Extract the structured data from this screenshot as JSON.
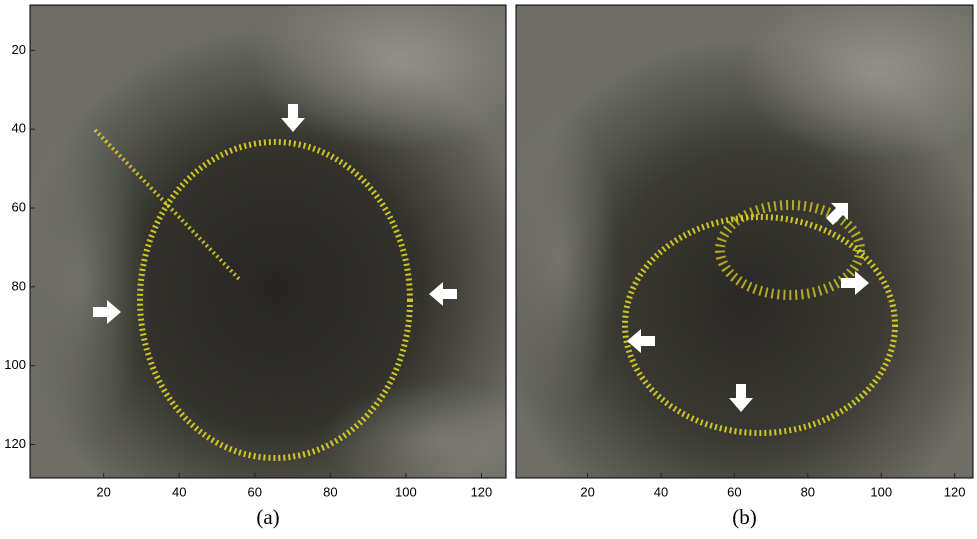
{
  "chart_data": [
    {
      "type": "image",
      "caption": "(a)",
      "xlim": [
        0.5,
        126.5
      ],
      "xticks": [
        20,
        40,
        60,
        80,
        100,
        120
      ],
      "ylim": [
        8.5,
        128.5
      ],
      "yticks": [
        20,
        40,
        60,
        80,
        100,
        120
      ]
    },
    {
      "type": "image",
      "caption": "(b)",
      "xlim": [
        0.5,
        125
      ],
      "xticks": [
        20,
        40,
        60,
        80,
        100,
        120
      ]
    }
  ]
}
